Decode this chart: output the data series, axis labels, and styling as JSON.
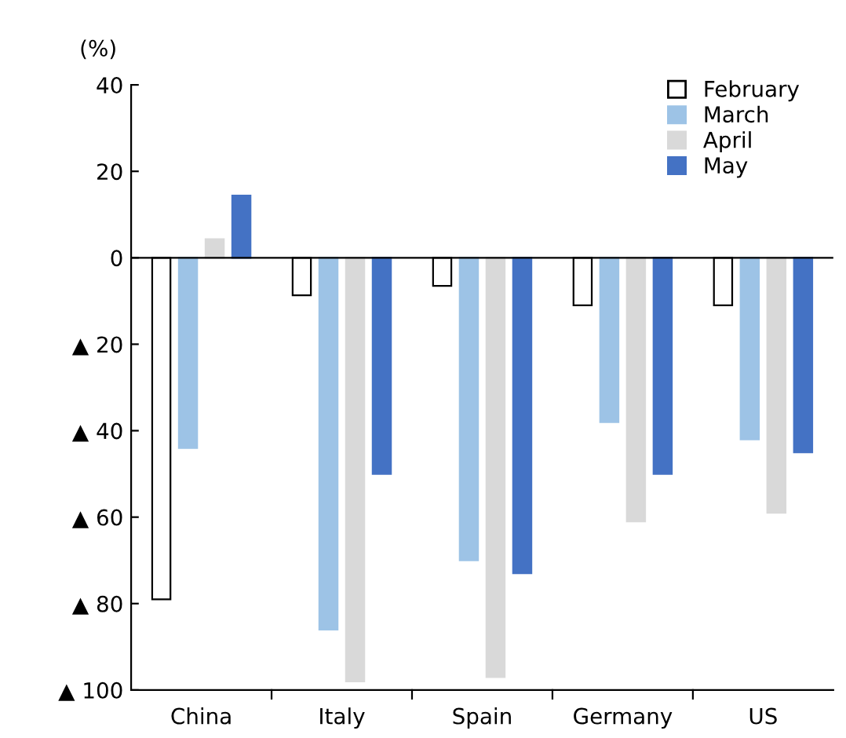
{
  "chart_data": {
    "type": "bar",
    "ylabel": "(%)",
    "categories": [
      "China",
      "Italy",
      "Spain",
      "Germany",
      "US"
    ],
    "series": [
      {
        "name": "February",
        "color": "#ffffff",
        "values": [
          -79,
          -8.7,
          -6.5,
          -11,
          -11
        ]
      },
      {
        "name": "March",
        "color": "#9dc3e6",
        "values": [
          -44,
          -86,
          -70,
          -38,
          -42
        ]
      },
      {
        "name": "April",
        "color": "#d9d9d9",
        "values": [
          4.3,
          -98,
          -97,
          -61,
          -59
        ]
      },
      {
        "name": "May",
        "color": "#4472c4",
        "values": [
          14.4,
          -50,
          -73,
          -50,
          -45
        ]
      }
    ],
    "ylim": [
      -100,
      40
    ],
    "yticks": [
      {
        "value": -100,
        "label": "▲ 100"
      },
      {
        "value": -80,
        "label": "▲ 80"
      },
      {
        "value": -60,
        "label": "▲ 60"
      },
      {
        "value": -40,
        "label": "▲ 40"
      },
      {
        "value": -20,
        "label": "▲ 20"
      },
      0,
      20,
      40
    ],
    "ref_lines": [
      {
        "axis": "y",
        "value": 0,
        "color": "#000000"
      }
    ],
    "grid": false,
    "legend": "top right"
  }
}
